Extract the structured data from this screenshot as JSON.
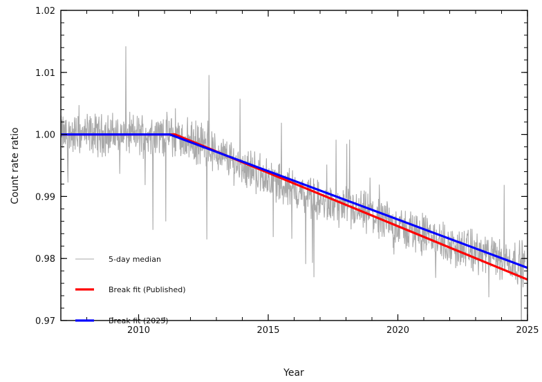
{
  "chart_data": {
    "type": "line",
    "title": "",
    "xlabel": "Year",
    "ylabel": "Count rate ratio",
    "xlim": [
      2007,
      2025
    ],
    "ylim": [
      0.97,
      1.02
    ],
    "xticks": [
      2010,
      2015,
      2020,
      2025
    ],
    "yticks": [
      0.97,
      0.98,
      0.99,
      1.0,
      1.01,
      1.02
    ],
    "ytick_labels": [
      "0.97",
      "0.98",
      "0.99",
      "1.00",
      "1.01",
      "1.02"
    ],
    "grid": false,
    "legend_position": "lower-left",
    "series": [
      {
        "name": "5-day median",
        "color": "#a9a9a9",
        "style": "noisy",
        "x": [
          2007.0,
          2008.0,
          2009.0,
          2010.0,
          2011.0,
          2012.0,
          2013.0,
          2014.0,
          2015.0,
          2016.0,
          2017.0,
          2018.0,
          2019.0,
          2020.0,
          2021.0,
          2022.0,
          2023.0,
          2024.0,
          2024.9
        ],
        "y": [
          1.0,
          1.0,
          1.0,
          1.0,
          1.0,
          0.999,
          0.997,
          0.995,
          0.993,
          0.991,
          0.989,
          0.988,
          0.987,
          0.985,
          0.984,
          0.982,
          0.981,
          0.98,
          0.979
        ]
      },
      {
        "name": "Break fit (Published)",
        "color": "#ff0000",
        "x": [
          2007.0,
          2011.4,
          2025.0
        ],
        "y": [
          1.0,
          1.0,
          0.9766
        ]
      },
      {
        "name": "Break fit (2025)",
        "color": "#0000ff",
        "x": [
          2007.0,
          2011.2,
          2025.0
        ],
        "y": [
          1.0,
          1.0,
          0.9785
        ]
      }
    ]
  }
}
